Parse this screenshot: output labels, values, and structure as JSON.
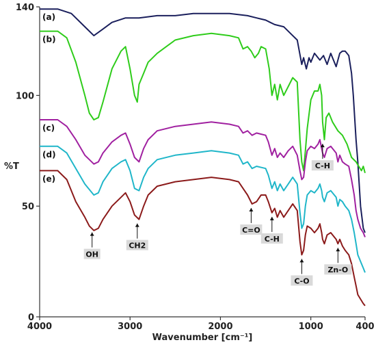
{
  "chart_data": {
    "type": "line",
    "xlabel": "Wavenumber [cm⁻¹]",
    "ylabel": "%T",
    "xlim": [
      4000,
      400
    ],
    "ylim": [
      0,
      140
    ],
    "x_ticks": [
      4000,
      3000,
      2000,
      1000,
      400
    ],
    "y_ticks": [
      0,
      50,
      100,
      140
    ],
    "grid": false,
    "series": [
      {
        "name": "(a)",
        "color": "#1a1f5c",
        "points": [
          [
            4000,
            139
          ],
          [
            3800,
            139
          ],
          [
            3650,
            137
          ],
          [
            3500,
            131
          ],
          [
            3400,
            127
          ],
          [
            3300,
            130
          ],
          [
            3200,
            133
          ],
          [
            3050,
            135
          ],
          [
            2900,
            135
          ],
          [
            2700,
            136
          ],
          [
            2500,
            136
          ],
          [
            2300,
            137
          ],
          [
            2100,
            137
          ],
          [
            1900,
            137
          ],
          [
            1700,
            136
          ],
          [
            1600,
            135
          ],
          [
            1500,
            134
          ],
          [
            1450,
            133
          ],
          [
            1400,
            132
          ],
          [
            1300,
            131
          ],
          [
            1200,
            127
          ],
          [
            1150,
            125
          ],
          [
            1100,
            114
          ],
          [
            1080,
            117
          ],
          [
            1050,
            112
          ],
          [
            1020,
            117
          ],
          [
            1000,
            115
          ],
          [
            960,
            119
          ],
          [
            900,
            116
          ],
          [
            860,
            118
          ],
          [
            820,
            114
          ],
          [
            780,
            119
          ],
          [
            760,
            117
          ],
          [
            720,
            113
          ],
          [
            700,
            116
          ],
          [
            680,
            119
          ],
          [
            650,
            120
          ],
          [
            620,
            120
          ],
          [
            580,
            118
          ],
          [
            550,
            110
          ],
          [
            530,
            100
          ],
          [
            500,
            80
          ],
          [
            480,
            70
          ],
          [
            450,
            50
          ],
          [
            420,
            40
          ],
          [
            400,
            38
          ]
        ]
      },
      {
        "name": "(b)",
        "color": "#2ecc1a",
        "points": [
          [
            4000,
            129
          ],
          [
            3800,
            129
          ],
          [
            3700,
            126
          ],
          [
            3600,
            115
          ],
          [
            3500,
            100
          ],
          [
            3450,
            92
          ],
          [
            3400,
            89
          ],
          [
            3350,
            90
          ],
          [
            3300,
            97
          ],
          [
            3200,
            112
          ],
          [
            3100,
            120
          ],
          [
            3050,
            122
          ],
          [
            3000,
            112
          ],
          [
            2950,
            100
          ],
          [
            2920,
            97
          ],
          [
            2900,
            105
          ],
          [
            2850,
            110
          ],
          [
            2800,
            115
          ],
          [
            2700,
            119
          ],
          [
            2600,
            122
          ],
          [
            2500,
            125
          ],
          [
            2300,
            127
          ],
          [
            2100,
            128
          ],
          [
            1900,
            127
          ],
          [
            1800,
            126
          ],
          [
            1750,
            121
          ],
          [
            1700,
            122
          ],
          [
            1660,
            120
          ],
          [
            1620,
            117
          ],
          [
            1580,
            119
          ],
          [
            1550,
            122
          ],
          [
            1500,
            121
          ],
          [
            1460,
            112
          ],
          [
            1430,
            100
          ],
          [
            1400,
            105
          ],
          [
            1370,
            98
          ],
          [
            1340,
            105
          ],
          [
            1300,
            100
          ],
          [
            1250,
            104
          ],
          [
            1200,
            108
          ],
          [
            1150,
            106
          ],
          [
            1120,
            80
          ],
          [
            1100,
            70
          ],
          [
            1080,
            66
          ],
          [
            1060,
            75
          ],
          [
            1040,
            85
          ],
          [
            1000,
            98
          ],
          [
            960,
            102
          ],
          [
            920,
            102
          ],
          [
            900,
            105
          ],
          [
            880,
            100
          ],
          [
            870,
            88
          ],
          [
            850,
            80
          ],
          [
            830,
            90
          ],
          [
            800,
            92
          ],
          [
            760,
            88
          ],
          [
            700,
            84
          ],
          [
            650,
            82
          ],
          [
            600,
            78
          ],
          [
            550,
            72
          ],
          [
            500,
            70
          ],
          [
            470,
            68
          ],
          [
            440,
            66
          ],
          [
            420,
            68
          ],
          [
            400,
            65
          ]
        ]
      },
      {
        "name": "(c)",
        "color": "#a020a0",
        "points": [
          [
            4000,
            89
          ],
          [
            3800,
            89
          ],
          [
            3700,
            86
          ],
          [
            3600,
            80
          ],
          [
            3500,
            73
          ],
          [
            3400,
            69
          ],
          [
            3350,
            70
          ],
          [
            3300,
            74
          ],
          [
            3200,
            79
          ],
          [
            3100,
            82
          ],
          [
            3050,
            83
          ],
          [
            3000,
            78
          ],
          [
            2950,
            72
          ],
          [
            2900,
            70
          ],
          [
            2850,
            76
          ],
          [
            2800,
            80
          ],
          [
            2700,
            84
          ],
          [
            2500,
            86
          ],
          [
            2300,
            87
          ],
          [
            2100,
            88
          ],
          [
            1900,
            87
          ],
          [
            1800,
            86
          ],
          [
            1750,
            83
          ],
          [
            1700,
            84
          ],
          [
            1650,
            82
          ],
          [
            1600,
            83
          ],
          [
            1500,
            82
          ],
          [
            1470,
            79
          ],
          [
            1430,
            73
          ],
          [
            1400,
            76
          ],
          [
            1370,
            72
          ],
          [
            1340,
            74
          ],
          [
            1300,
            72
          ],
          [
            1250,
            75
          ],
          [
            1200,
            77
          ],
          [
            1150,
            73
          ],
          [
            1120,
            66
          ],
          [
            1100,
            62
          ],
          [
            1080,
            63
          ],
          [
            1060,
            70
          ],
          [
            1040,
            75
          ],
          [
            1000,
            77
          ],
          [
            960,
            76
          ],
          [
            920,
            78
          ],
          [
            900,
            80
          ],
          [
            880,
            76
          ],
          [
            870,
            74
          ],
          [
            850,
            72
          ],
          [
            820,
            76
          ],
          [
            780,
            77
          ],
          [
            720,
            74
          ],
          [
            700,
            70
          ],
          [
            680,
            73
          ],
          [
            650,
            70
          ],
          [
            620,
            69
          ],
          [
            580,
            68
          ],
          [
            550,
            62
          ],
          [
            520,
            55
          ],
          [
            500,
            48
          ],
          [
            480,
            44
          ],
          [
            450,
            40
          ],
          [
            420,
            38
          ],
          [
            400,
            36
          ]
        ]
      },
      {
        "name": "(d)",
        "color": "#1fb6c9",
        "points": [
          [
            4000,
            77
          ],
          [
            3800,
            77
          ],
          [
            3700,
            74
          ],
          [
            3600,
            67
          ],
          [
            3500,
            60
          ],
          [
            3400,
            55
          ],
          [
            3350,
            56
          ],
          [
            3300,
            61
          ],
          [
            3200,
            67
          ],
          [
            3100,
            70
          ],
          [
            3050,
            71
          ],
          [
            3000,
            66
          ],
          [
            2950,
            58
          ],
          [
            2900,
            57
          ],
          [
            2850,
            63
          ],
          [
            2800,
            67
          ],
          [
            2700,
            71
          ],
          [
            2500,
            73
          ],
          [
            2300,
            74
          ],
          [
            2100,
            75
          ],
          [
            1900,
            74
          ],
          [
            1800,
            73
          ],
          [
            1750,
            69
          ],
          [
            1700,
            70
          ],
          [
            1650,
            67
          ],
          [
            1600,
            68
          ],
          [
            1500,
            67
          ],
          [
            1470,
            64
          ],
          [
            1430,
            58
          ],
          [
            1400,
            61
          ],
          [
            1370,
            57
          ],
          [
            1340,
            60
          ],
          [
            1300,
            57
          ],
          [
            1250,
            60
          ],
          [
            1200,
            63
          ],
          [
            1150,
            60
          ],
          [
            1120,
            47
          ],
          [
            1100,
            40
          ],
          [
            1080,
            42
          ],
          [
            1060,
            50
          ],
          [
            1040,
            55
          ],
          [
            1000,
            57
          ],
          [
            960,
            56
          ],
          [
            920,
            58
          ],
          [
            900,
            60
          ],
          [
            880,
            57
          ],
          [
            870,
            54
          ],
          [
            850,
            52
          ],
          [
            820,
            56
          ],
          [
            780,
            57
          ],
          [
            720,
            54
          ],
          [
            700,
            50
          ],
          [
            680,
            53
          ],
          [
            650,
            52
          ],
          [
            620,
            50
          ],
          [
            580,
            48
          ],
          [
            550,
            44
          ],
          [
            520,
            38
          ],
          [
            500,
            33
          ],
          [
            480,
            28
          ],
          [
            450,
            25
          ],
          [
            420,
            22
          ],
          [
            400,
            20
          ]
        ]
      },
      {
        "name": "(e)",
        "color": "#8b1a1a",
        "points": [
          [
            4000,
            66
          ],
          [
            3800,
            66
          ],
          [
            3700,
            62
          ],
          [
            3600,
            52
          ],
          [
            3500,
            45
          ],
          [
            3450,
            41
          ],
          [
            3400,
            39
          ],
          [
            3350,
            40
          ],
          [
            3300,
            44
          ],
          [
            3200,
            50
          ],
          [
            3100,
            54
          ],
          [
            3050,
            56
          ],
          [
            3000,
            52
          ],
          [
            2950,
            46
          ],
          [
            2900,
            44
          ],
          [
            2850,
            50
          ],
          [
            2800,
            55
          ],
          [
            2700,
            59
          ],
          [
            2500,
            61
          ],
          [
            2300,
            62
          ],
          [
            2100,
            63
          ],
          [
            1900,
            62
          ],
          [
            1800,
            61
          ],
          [
            1750,
            58
          ],
          [
            1700,
            55
          ],
          [
            1650,
            51
          ],
          [
            1600,
            52
          ],
          [
            1550,
            55
          ],
          [
            1500,
            55
          ],
          [
            1470,
            52
          ],
          [
            1430,
            47
          ],
          [
            1400,
            49
          ],
          [
            1370,
            45
          ],
          [
            1340,
            48
          ],
          [
            1300,
            45
          ],
          [
            1250,
            48
          ],
          [
            1200,
            51
          ],
          [
            1150,
            48
          ],
          [
            1120,
            34
          ],
          [
            1100,
            28
          ],
          [
            1080,
            30
          ],
          [
            1060,
            37
          ],
          [
            1040,
            41
          ],
          [
            1000,
            40
          ],
          [
            960,
            38
          ],
          [
            920,
            40
          ],
          [
            900,
            42
          ],
          [
            880,
            38
          ],
          [
            870,
            35
          ],
          [
            850,
            33
          ],
          [
            820,
            37
          ],
          [
            780,
            38
          ],
          [
            720,
            35
          ],
          [
            700,
            33
          ],
          [
            680,
            35
          ],
          [
            650,
            32
          ],
          [
            620,
            30
          ],
          [
            580,
            28
          ],
          [
            550,
            24
          ],
          [
            520,
            18
          ],
          [
            500,
            14
          ],
          [
            480,
            10
          ],
          [
            450,
            8
          ],
          [
            420,
            6
          ],
          [
            400,
            5
          ]
        ]
      }
    ],
    "annotations": [
      {
        "text": "OH",
        "x": 3420,
        "y": 40
      },
      {
        "text": "CH2",
        "x": 2920,
        "y": 44
      },
      {
        "text": "C=O",
        "x": 1660,
        "y": 51
      },
      {
        "text": "C-H",
        "x": 1430,
        "y": 47
      },
      {
        "text": "C-O",
        "x": 1100,
        "y": 28
      },
      {
        "text": "Zn-O",
        "x": 700,
        "y": 33
      },
      {
        "text": "C-H",
        "x": 870,
        "y": 80
      }
    ]
  }
}
